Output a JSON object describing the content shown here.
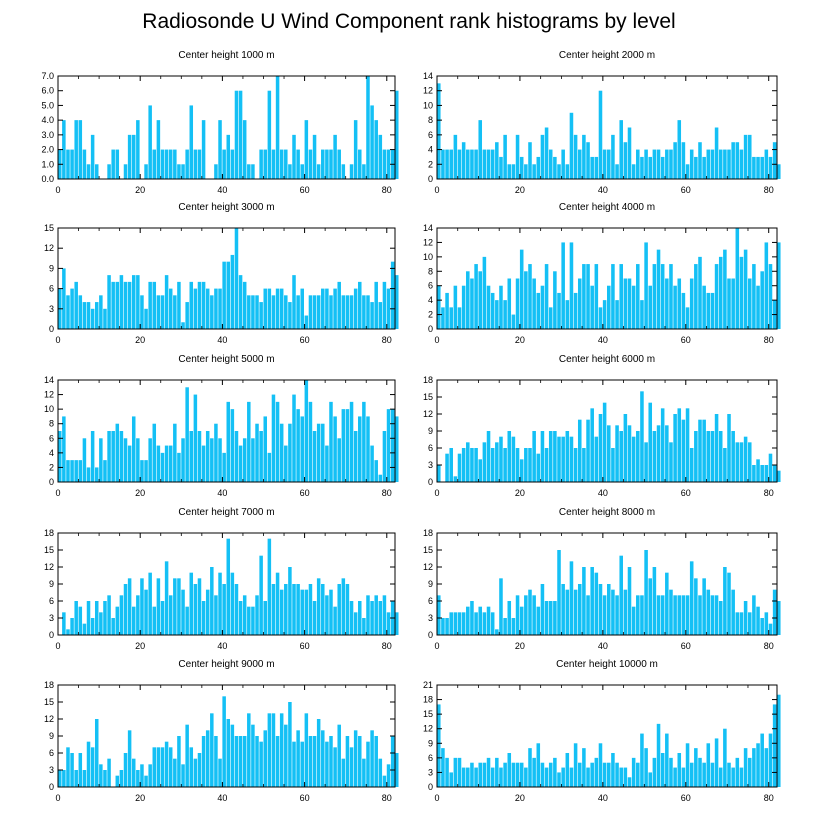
{
  "title": "Radiosonde U Wind Component rank histograms by level",
  "colors": {
    "bar": "#14c0f5",
    "bar_edge": "#ffffff",
    "axis": "#000000"
  },
  "chart_data": [
    {
      "type": "bar",
      "title": "Center height 1000 m",
      "xlim": [
        0,
        82
      ],
      "ylim": [
        0,
        7
      ],
      "xticks": [
        0,
        20,
        40,
        60,
        80
      ],
      "yticks": [
        0,
        1,
        2,
        3,
        4,
        5,
        6,
        7
      ],
      "yticklabels": [
        "0.0",
        "1.0",
        "2.0",
        "3.0",
        "4.0",
        "5.0",
        "6.0",
        "7.0"
      ],
      "x_start": 0,
      "values": [
        2,
        4,
        2,
        2,
        4,
        4,
        2,
        1,
        3,
        1,
        0,
        0,
        1,
        2,
        2,
        0,
        1,
        3,
        3,
        4,
        0,
        1,
        5,
        2,
        4,
        2,
        2,
        2,
        2,
        1,
        1,
        2,
        5,
        2,
        2,
        4,
        0,
        0,
        1,
        4,
        2,
        3,
        2,
        6,
        6,
        4,
        1,
        1,
        0,
        2,
        2,
        6,
        2,
        7,
        2,
        2,
        1,
        3,
        2,
        1,
        4,
        2,
        3,
        1,
        2,
        2,
        2,
        3,
        2,
        1,
        0,
        1,
        4,
        2,
        1,
        7,
        5,
        4,
        3,
        2,
        2,
        2,
        6
      ],
      "grid": false,
      "legend": null
    },
    {
      "type": "bar",
      "title": "Center height 2000 m",
      "xlim": [
        0,
        82
      ],
      "ylim": [
        0,
        14
      ],
      "xticks": [
        0,
        20,
        40,
        60,
        80
      ],
      "yticks": [
        0,
        2,
        4,
        6,
        8,
        10,
        12,
        14
      ],
      "yticklabels": [
        "0",
        "2",
        "4",
        "6",
        "8",
        "10",
        "12",
        "14"
      ],
      "x_start": 0,
      "values": [
        13,
        4,
        4,
        4,
        6,
        4,
        5,
        4,
        4,
        4,
        8,
        4,
        4,
        4,
        5,
        3,
        6,
        2,
        2,
        6,
        3,
        2,
        5,
        2,
        3,
        6,
        7,
        4,
        3,
        2,
        4,
        2,
        9,
        6,
        4,
        6,
        5,
        3,
        3,
        12,
        4,
        4,
        6,
        2,
        8,
        5,
        7,
        2,
        4,
        3,
        4,
        3,
        4,
        4,
        3,
        4,
        4,
        5,
        8,
        5,
        2,
        4,
        3,
        5,
        3,
        4,
        4,
        7,
        4,
        4,
        4,
        5,
        5,
        4,
        6,
        6,
        3,
        3,
        3,
        4,
        3,
        5,
        2
      ],
      "grid": false,
      "legend": null
    },
    {
      "type": "bar",
      "title": "Center height 3000 m",
      "xlim": [
        0,
        82
      ],
      "ylim": [
        0,
        15
      ],
      "xticks": [
        0,
        20,
        40,
        60,
        80
      ],
      "yticks": [
        0,
        3,
        6,
        9,
        12,
        15
      ],
      "yticklabels": [
        "0",
        "3",
        "6",
        "9",
        "12",
        "15"
      ],
      "x_start": 0,
      "values": [
        6,
        9,
        5,
        6,
        7,
        5,
        4,
        4,
        3,
        4,
        5,
        3,
        8,
        7,
        7,
        8,
        7,
        7,
        8,
        8,
        5,
        3,
        7,
        7,
        5,
        5,
        8,
        6,
        5,
        7,
        1,
        4,
        7,
        6,
        7,
        7,
        6,
        5,
        6,
        6,
        10,
        10,
        11,
        15,
        8,
        7,
        5,
        5,
        5,
        4,
        6,
        6,
        5,
        6,
        6,
        5,
        4,
        8,
        5,
        6,
        2,
        5,
        5,
        5,
        6,
        6,
        5,
        6,
        7,
        5,
        5,
        5,
        6,
        7,
        5,
        5,
        4,
        7,
        4,
        7,
        6,
        10,
        8
      ],
      "grid": false,
      "legend": null
    },
    {
      "type": "bar",
      "title": "Center height 4000 m",
      "xlim": [
        0,
        82
      ],
      "ylim": [
        0,
        14
      ],
      "xticks": [
        0,
        20,
        40,
        60,
        80
      ],
      "yticks": [
        0,
        2,
        4,
        6,
        8,
        10,
        12,
        14
      ],
      "yticklabels": [
        "0",
        "2",
        "4",
        "6",
        "8",
        "10",
        "12",
        "14"
      ],
      "x_start": 0,
      "values": [
        6,
        3,
        5,
        3,
        6,
        3,
        6,
        8,
        7,
        9,
        8,
        10,
        6,
        5,
        4,
        6,
        4,
        7,
        2,
        7,
        11,
        8,
        9,
        7,
        5,
        6,
        9,
        3,
        8,
        5,
        12,
        4,
        12,
        5,
        7,
        9,
        9,
        6,
        9,
        3,
        4,
        6,
        9,
        4,
        9,
        7,
        7,
        6,
        9,
        4,
        12,
        6,
        9,
        11,
        9,
        7,
        9,
        6,
        7,
        5,
        3,
        7,
        9,
        10,
        6,
        5,
        5,
        9,
        10,
        11,
        7,
        7,
        14,
        10,
        11,
        7,
        9,
        6,
        8,
        12,
        9,
        4,
        12
      ],
      "grid": false,
      "legend": null
    },
    {
      "type": "bar",
      "title": "Center height 5000 m",
      "xlim": [
        0,
        82
      ],
      "ylim": [
        0,
        14
      ],
      "xticks": [
        0,
        20,
        40,
        60,
        80
      ],
      "yticks": [
        0,
        2,
        4,
        6,
        8,
        10,
        12,
        14
      ],
      "yticklabels": [
        "0",
        "2",
        "4",
        "6",
        "8",
        "10",
        "12",
        "14"
      ],
      "x_start": 0,
      "values": [
        7,
        9,
        3,
        3,
        3,
        3,
        6,
        2,
        7,
        2,
        6,
        3,
        7,
        7,
        8,
        7,
        6,
        5,
        9,
        6,
        3,
        3,
        6,
        8,
        5,
        4,
        5,
        5,
        8,
        4,
        6,
        13,
        7,
        12,
        7,
        5,
        7,
        6,
        8,
        6,
        4,
        11,
        10,
        7,
        5,
        6,
        11,
        6,
        8,
        7,
        9,
        4,
        12,
        11,
        8,
        5,
        8,
        12,
        10,
        9,
        14,
        11,
        7,
        8,
        8,
        5,
        11,
        9,
        6,
        10,
        10,
        11,
        7,
        9,
        11,
        9,
        5,
        3,
        1,
        7,
        10,
        10,
        9
      ],
      "grid": false,
      "legend": null
    },
    {
      "type": "bar",
      "title": "Center height 6000 m",
      "xlim": [
        0,
        82
      ],
      "ylim": [
        0,
        18
      ],
      "xticks": [
        0,
        20,
        40,
        60,
        80
      ],
      "yticks": [
        0,
        3,
        6,
        9,
        12,
        15,
        18
      ],
      "yticklabels": [
        "0",
        "3",
        "6",
        "9",
        "12",
        "15",
        "18"
      ],
      "x_start": 0,
      "values": [
        3,
        0,
        5,
        6,
        1,
        5,
        6,
        7,
        6,
        6,
        4,
        7,
        9,
        6,
        7,
        8,
        6,
        9,
        8,
        6,
        4,
        6,
        6,
        9,
        5,
        9,
        6,
        9,
        9,
        8,
        8,
        9,
        8,
        6,
        11,
        6,
        11,
        13,
        8,
        12,
        14,
        10,
        6,
        10,
        9,
        12,
        10,
        8,
        9,
        16,
        7,
        14,
        9,
        10,
        13,
        10,
        7,
        12,
        13,
        11,
        13,
        6,
        9,
        11,
        11,
        9,
        9,
        12,
        9,
        6,
        12,
        9,
        7,
        7,
        8,
        7,
        3,
        4,
        3,
        3,
        5,
        3,
        2
      ],
      "grid": false,
      "legend": null
    },
    {
      "type": "bar",
      "title": "Center height 7000 m",
      "xlim": [
        0,
        82
      ],
      "ylim": [
        0,
        18
      ],
      "xticks": [
        0,
        20,
        40,
        60,
        80
      ],
      "yticks": [
        0,
        3,
        6,
        9,
        12,
        15,
        18
      ],
      "yticklabels": [
        "0",
        "3",
        "6",
        "9",
        "12",
        "15",
        "18"
      ],
      "x_start": 0,
      "values": [
        0,
        4,
        1,
        3,
        6,
        5,
        2,
        6,
        3,
        6,
        4,
        6,
        7,
        3,
        5,
        7,
        9,
        10,
        5,
        7,
        10,
        8,
        11,
        5,
        10,
        6,
        13,
        7,
        10,
        10,
        8,
        5,
        11,
        9,
        10,
        6,
        8,
        12,
        7,
        11,
        9,
        17,
        11,
        9,
        6,
        7,
        5,
        5,
        7,
        14,
        6,
        17,
        9,
        11,
        8,
        9,
        12,
        9,
        9,
        8,
        8,
        9,
        6,
        10,
        9,
        7,
        8,
        5,
        9,
        10,
        9,
        6,
        4,
        6,
        3,
        7,
        6,
        7,
        6,
        7,
        4,
        6,
        4
      ],
      "grid": false,
      "legend": null
    },
    {
      "type": "bar",
      "title": "Center height 8000 m",
      "xlim": [
        0,
        82
      ],
      "ylim": [
        0,
        18
      ],
      "xticks": [
        0,
        20,
        40,
        60,
        80
      ],
      "yticks": [
        0,
        3,
        6,
        9,
        12,
        15,
        18
      ],
      "yticklabels": [
        "0",
        "3",
        "6",
        "9",
        "12",
        "15",
        "18"
      ],
      "x_start": 0,
      "values": [
        7,
        3,
        3,
        4,
        4,
        4,
        4,
        5,
        6,
        4,
        5,
        4,
        5,
        4,
        1,
        10,
        3,
        6,
        3,
        7,
        5,
        7,
        8,
        7,
        5,
        9,
        6,
        6,
        6,
        15,
        9,
        8,
        13,
        8,
        9,
        12,
        7,
        12,
        11,
        9,
        7,
        9,
        8,
        7,
        14,
        8,
        12,
        5,
        7,
        7,
        15,
        10,
        12,
        7,
        7,
        11,
        8,
        7,
        7,
        7,
        7,
        13,
        10,
        7,
        10,
        8,
        7,
        7,
        6,
        12,
        11,
        8,
        4,
        4,
        6,
        4,
        7,
        5,
        3,
        4,
        2,
        8,
        6
      ],
      "grid": false,
      "legend": null
    },
    {
      "type": "bar",
      "title": "Center height 9000 m",
      "xlim": [
        0,
        82
      ],
      "ylim": [
        0,
        18
      ],
      "xticks": [
        0,
        20,
        40,
        60,
        80
      ],
      "yticks": [
        0,
        3,
        6,
        9,
        12,
        15,
        18
      ],
      "yticklabels": [
        "0",
        "3",
        "6",
        "9",
        "12",
        "15",
        "18"
      ],
      "x_start": 0,
      "values": [
        3,
        3,
        7,
        6,
        3,
        6,
        3,
        8,
        7,
        12,
        4,
        3,
        5,
        0,
        2,
        3,
        6,
        10,
        5,
        3,
        4,
        2,
        4,
        7,
        7,
        7,
        8,
        7,
        5,
        9,
        4,
        11,
        7,
        5,
        6,
        9,
        10,
        13,
        9,
        5,
        16,
        12,
        11,
        9,
        9,
        9,
        13,
        11,
        9,
        8,
        10,
        13,
        13,
        9,
        13,
        11,
        15,
        8,
        10,
        8,
        13,
        9,
        9,
        12,
        10,
        8,
        9,
        7,
        11,
        5,
        9,
        7,
        10,
        9,
        5,
        8,
        10,
        9,
        5,
        2,
        4,
        9,
        6
      ],
      "grid": false,
      "legend": null
    },
    {
      "type": "bar",
      "title": "Center height 10000 m",
      "xlim": [
        0,
        82
      ],
      "ylim": [
        0,
        21
      ],
      "xticks": [
        0,
        20,
        40,
        60,
        80
      ],
      "yticks": [
        0,
        3,
        6,
        9,
        12,
        15,
        18,
        21
      ],
      "yticklabels": [
        "0",
        "3",
        "6",
        "9",
        "12",
        "15",
        "18",
        "21"
      ],
      "x_start": 0,
      "values": [
        17,
        8,
        6,
        3,
        6,
        6,
        4,
        4,
        5,
        4,
        5,
        5,
        6,
        4,
        6,
        4,
        5,
        7,
        5,
        5,
        5,
        4,
        8,
        6,
        9,
        5,
        4,
        5,
        6,
        3,
        4,
        7,
        4,
        9,
        5,
        8,
        4,
        5,
        6,
        9,
        5,
        5,
        7,
        5,
        4,
        4,
        2,
        6,
        5,
        11,
        8,
        3,
        6,
        13,
        7,
        11,
        6,
        4,
        7,
        4,
        9,
        5,
        8,
        6,
        5,
        9,
        5,
        10,
        4,
        12,
        5,
        4,
        6,
        4,
        8,
        6,
        8,
        9,
        11,
        8,
        11,
        17,
        19
      ],
      "grid": false,
      "legend": null
    }
  ]
}
